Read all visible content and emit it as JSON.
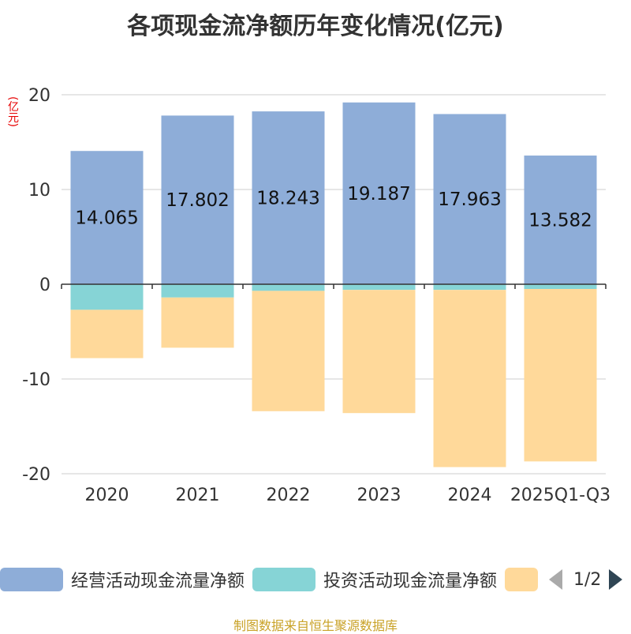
{
  "chart_data": {
    "type": "bar",
    "stacked": true,
    "title": "各项现金流净额历年变化情况(亿元)",
    "unit_label": "(亿元)",
    "categories": [
      "2020",
      "2021",
      "2022",
      "2023",
      "2024",
      "2025Q1-Q3"
    ],
    "ylim": [
      -20,
      20
    ],
    "yticks": [
      20,
      10,
      0,
      -10,
      -20
    ],
    "ytick_labels": [
      "20",
      "10",
      "0",
      "-10",
      "-20"
    ],
    "grid": true,
    "series": [
      {
        "name": "经营活动现金流量净额",
        "color": "#8eadd8",
        "values": [
          14.065,
          17.802,
          18.243,
          19.187,
          17.963,
          13.582
        ],
        "labels": [
          "14.065",
          "17.802",
          "18.243",
          "19.187",
          "17.963",
          "13.582"
        ]
      },
      {
        "name": "投资活动现金流量净额",
        "color": "#86d4d6",
        "values": [
          -2.7,
          -1.4,
          -0.7,
          -0.6,
          -0.6,
          -0.5
        ]
      },
      {
        "name": "",
        "color": "#ffd99a",
        "values": [
          -5.1,
          -5.3,
          -12.7,
          -13.0,
          -18.7,
          -18.2
        ]
      }
    ]
  },
  "legend": {
    "items": [
      {
        "label": "经营活动现金流量净额",
        "color": "#8eadd8"
      },
      {
        "label": "投资活动现金流量净额",
        "color": "#86d4d6"
      },
      {
        "label": "",
        "color": "#ffd99a"
      }
    ],
    "page_indicator": "1/2"
  },
  "footer": {
    "source_text": "制图数据来自恒生聚源数据库"
  }
}
